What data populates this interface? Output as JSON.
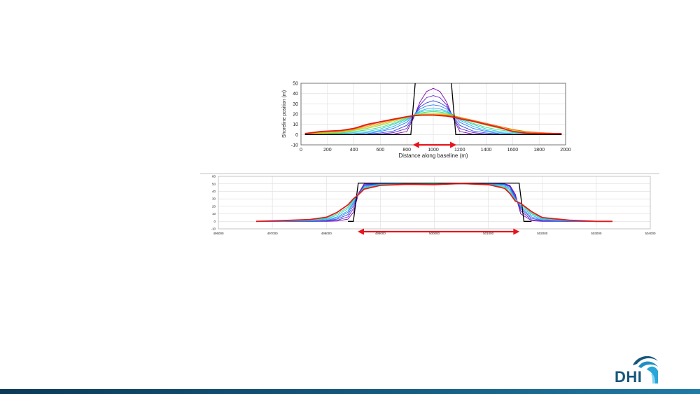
{
  "colors": {
    "series": [
      "#7b00a8",
      "#5a1fd0",
      "#3b46e8",
      "#2a7df2",
      "#1fb3f0",
      "#2bd0c4",
      "#43d88a",
      "#8adf3e",
      "#d4d21b",
      "#f59b12",
      "#f46a0c"
    ],
    "initial": "#000000",
    "final": "#e31a1c",
    "arrow": "#e8141c",
    "footer": "#145a7f",
    "logo": "#16567c"
  },
  "logo": {
    "text": "DHI",
    "icon": "dhi-wave-icon"
  },
  "chart_data": [
    {
      "type": "line",
      "title": "",
      "xlabel": "Distance along baseline (m)",
      "ylabel": "Shoreline position (m)",
      "xlim": [
        0,
        2000
      ],
      "ylim": [
        -10,
        50
      ],
      "xticks": [
        "0",
        "200",
        "400",
        "600",
        "800",
        "1000",
        "1200",
        "1400",
        "1600",
        "1800",
        "2000"
      ],
      "yticks": [
        "50",
        "40",
        "30",
        "20",
        "10",
        "0",
        "-10"
      ],
      "grid": true,
      "x": [
        30,
        150,
        300,
        400,
        500,
        600,
        700,
        800,
        850,
        900,
        950,
        1000,
        1050,
        1100,
        1150,
        1200,
        1300,
        1400,
        1500,
        1600,
        1700,
        1800,
        1970
      ],
      "initial": [
        [
          30,
          0
        ],
        [
          830,
          0
        ],
        [
          870,
          60
        ],
        [
          1130,
          60
        ],
        [
          1170,
          0
        ],
        [
          1970,
          0
        ]
      ],
      "series": [
        {
          "values": [
            0,
            0,
            0,
            0,
            0,
            0,
            0.5,
            3,
            16,
            32,
            42,
            45,
            42,
            32,
            16,
            3,
            0.5,
            0,
            0,
            0,
            0,
            0,
            0
          ]
        },
        {
          "values": [
            0,
            0,
            0,
            0,
            0,
            0.5,
            2,
            6,
            17,
            29,
            36,
            38,
            36,
            29,
            17,
            6,
            2,
            0.5,
            0,
            0,
            0,
            0,
            0
          ]
        },
        {
          "values": [
            0,
            0,
            0,
            0,
            0.5,
            1.5,
            3.5,
            9,
            18,
            27,
            31,
            33,
            31,
            27,
            18,
            9,
            3.5,
            1.5,
            0.5,
            0,
            0,
            0,
            0
          ]
        },
        {
          "values": [
            0,
            0,
            0,
            0.5,
            1,
            3,
            6,
            12,
            19,
            25,
            28,
            29,
            28,
            25,
            19,
            12,
            6,
            3,
            1,
            0.5,
            0,
            0,
            0
          ]
        },
        {
          "values": [
            0,
            0,
            0.5,
            1,
            2,
            4,
            8,
            14,
            19,
            23,
            25,
            26,
            25,
            23,
            19,
            14,
            8,
            4,
            2,
            1,
            0.5,
            0,
            0
          ]
        },
        {
          "values": [
            0,
            0.5,
            1,
            2,
            3,
            5.5,
            10,
            15,
            19,
            22,
            23.5,
            24,
            23.5,
            22,
            19,
            15,
            10,
            5.5,
            3,
            2,
            1,
            0.5,
            0
          ]
        },
        {
          "values": [
            0,
            0.5,
            1.5,
            3,
            4.5,
            7,
            11,
            16,
            19,
            21,
            22,
            22.5,
            22,
            21,
            19,
            16,
            11,
            7,
            4.5,
            3,
            1.5,
            0.5,
            0
          ]
        },
        {
          "values": [
            0,
            1,
            2,
            4,
            6,
            9,
            12.5,
            16.5,
            19,
            20,
            21,
            21,
            21,
            20,
            19,
            16.5,
            12.5,
            9,
            6,
            4,
            2,
            1,
            0
          ]
        },
        {
          "values": [
            0,
            1.5,
            2.5,
            4.5,
            7,
            10,
            13.5,
            17,
            18.5,
            19.5,
            20,
            20,
            20,
            19.5,
            18.5,
            17,
            13.5,
            10,
            7,
            4.5,
            2.5,
            1.5,
            0.5
          ]
        },
        {
          "values": [
            0.5,
            2,
            3,
            5,
            8,
            11,
            14,
            17,
            18.5,
            19,
            19.5,
            19.5,
            19.5,
            19,
            18.5,
            17,
            14,
            11,
            8,
            5,
            3,
            2,
            1
          ]
        },
        {
          "values": [
            1,
            2.5,
            3.5,
            5.5,
            9,
            12,
            14.5,
            17,
            18,
            18.5,
            19,
            19,
            19,
            18.5,
            18,
            16.5,
            14,
            11,
            8,
            5,
            3,
            2,
            1
          ]
        }
      ],
      "final": {
        "values": [
          1,
          3,
          4,
          6,
          10,
          12.5,
          15,
          17.5,
          18.5,
          19,
          19,
          19,
          18.5,
          18,
          17,
          15.5,
          13,
          10,
          7,
          3,
          1.5,
          1,
          1
        ]
      },
      "arrow_span": [
        845,
        1175
      ]
    },
    {
      "type": "line",
      "title": "",
      "xlabel": "",
      "ylabel": "",
      "xlim": [
        496000,
        504000
      ],
      "ylim": [
        -10,
        60
      ],
      "xticks": [
        "496000",
        "497000",
        "498000",
        "499000",
        "500000",
        "501000",
        "502000",
        "503000",
        "504000"
      ],
      "yticks": [
        "60",
        "50",
        "40",
        "30",
        "20",
        "10",
        "0",
        "-10"
      ],
      "grid": true,
      "x": [
        496700,
        497200,
        497700,
        498000,
        498200,
        498400,
        498500,
        498600,
        498700,
        499000,
        499500,
        500000,
        500500,
        501000,
        501300,
        501400,
        501500,
        501600,
        501800,
        502000,
        502500,
        503000,
        503300
      ],
      "initial": [
        [
          498400,
          0
        ],
        [
          498500,
          0
        ],
        [
          498590,
          51
        ],
        [
          501570,
          51
        ],
        [
          501660,
          0
        ],
        [
          501800,
          0
        ]
      ],
      "series": [
        {
          "values": [
            0,
            0,
            0,
            0,
            0.5,
            3,
            12,
            38,
            50,
            50,
            50,
            50,
            50,
            50,
            50,
            48,
            36,
            10,
            1,
            0,
            0,
            0,
            0
          ]
        },
        {
          "values": [
            0,
            0,
            0,
            0.5,
            1.5,
            6,
            17,
            38,
            49,
            50,
            50,
            50,
            50,
            50,
            50,
            47,
            34,
            14,
            2,
            0.5,
            0,
            0,
            0
          ]
        },
        {
          "values": [
            0,
            0,
            0.5,
            1,
            3,
            9,
            21,
            37,
            48,
            50,
            50,
            50,
            50,
            50,
            49.5,
            46,
            32,
            17,
            4,
            1,
            0,
            0,
            0
          ]
        },
        {
          "values": [
            0,
            0,
            0.5,
            1.5,
            4.5,
            12,
            24,
            36,
            47,
            50,
            50,
            50,
            50,
            50,
            49,
            44,
            31,
            19,
            6,
            1.5,
            0.5,
            0,
            0
          ]
        },
        {
          "values": [
            0,
            0.5,
            1,
            2.5,
            6,
            14,
            26,
            36,
            46,
            49.5,
            50,
            50,
            50,
            49.5,
            48,
            42,
            30,
            21,
            8,
            2.5,
            0.5,
            0,
            0
          ]
        },
        {
          "values": [
            0,
            0.5,
            1.5,
            3.5,
            8,
            17,
            28,
            36,
            45,
            49,
            50,
            50,
            50,
            49,
            47,
            40,
            29,
            23,
            10,
            3.5,
            1,
            0,
            0
          ]
        },
        {
          "values": [
            0,
            0.5,
            2,
            4.5,
            10,
            19,
            29,
            36,
            44,
            48.5,
            50,
            50,
            50,
            48.5,
            46,
            38,
            28,
            23,
            11,
            4.5,
            1,
            0,
            0
          ]
        }
      ],
      "final": {
        "values": [
          0,
          1,
          2.5,
          5.5,
          12,
          22,
          30,
          36,
          43,
          48,
          49.5,
          49,
          50.5,
          49,
          44,
          37,
          27,
          24,
          13,
          5,
          1.5,
          0,
          0
        ]
      },
      "arrow_span": [
        498580,
        501580
      ]
    }
  ]
}
